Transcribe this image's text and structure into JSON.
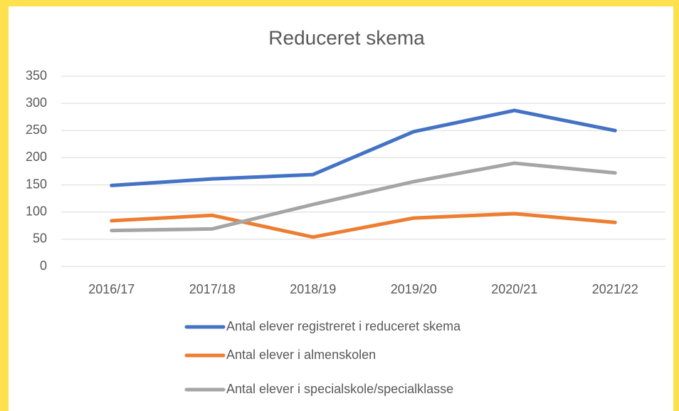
{
  "chart_data": {
    "type": "line",
    "title": "Reduceret skema",
    "categories": [
      "2016/17",
      "2017/18",
      "2018/19",
      "2019/20",
      "2020/21",
      "2021/22"
    ],
    "series": [
      {
        "name": "Antal elever registreret i reduceret skema",
        "color": "#4472c4",
        "values": [
          149,
          161,
          169,
          248,
          287,
          250
        ]
      },
      {
        "name": "Antal elever i almenskolen",
        "color": "#ed7d31",
        "values": [
          84,
          94,
          54,
          89,
          97,
          81
        ]
      },
      {
        "name": "Antal elever i specialskole/specialklasse",
        "color": "#a5a5a5",
        "values": [
          66,
          69,
          114,
          156,
          190,
          172
        ]
      }
    ],
    "ylim": [
      0,
      350
    ],
    "yticks": [
      0,
      50,
      100,
      150,
      200,
      250,
      300,
      350
    ],
    "grid": true,
    "legend": "bottom"
  }
}
